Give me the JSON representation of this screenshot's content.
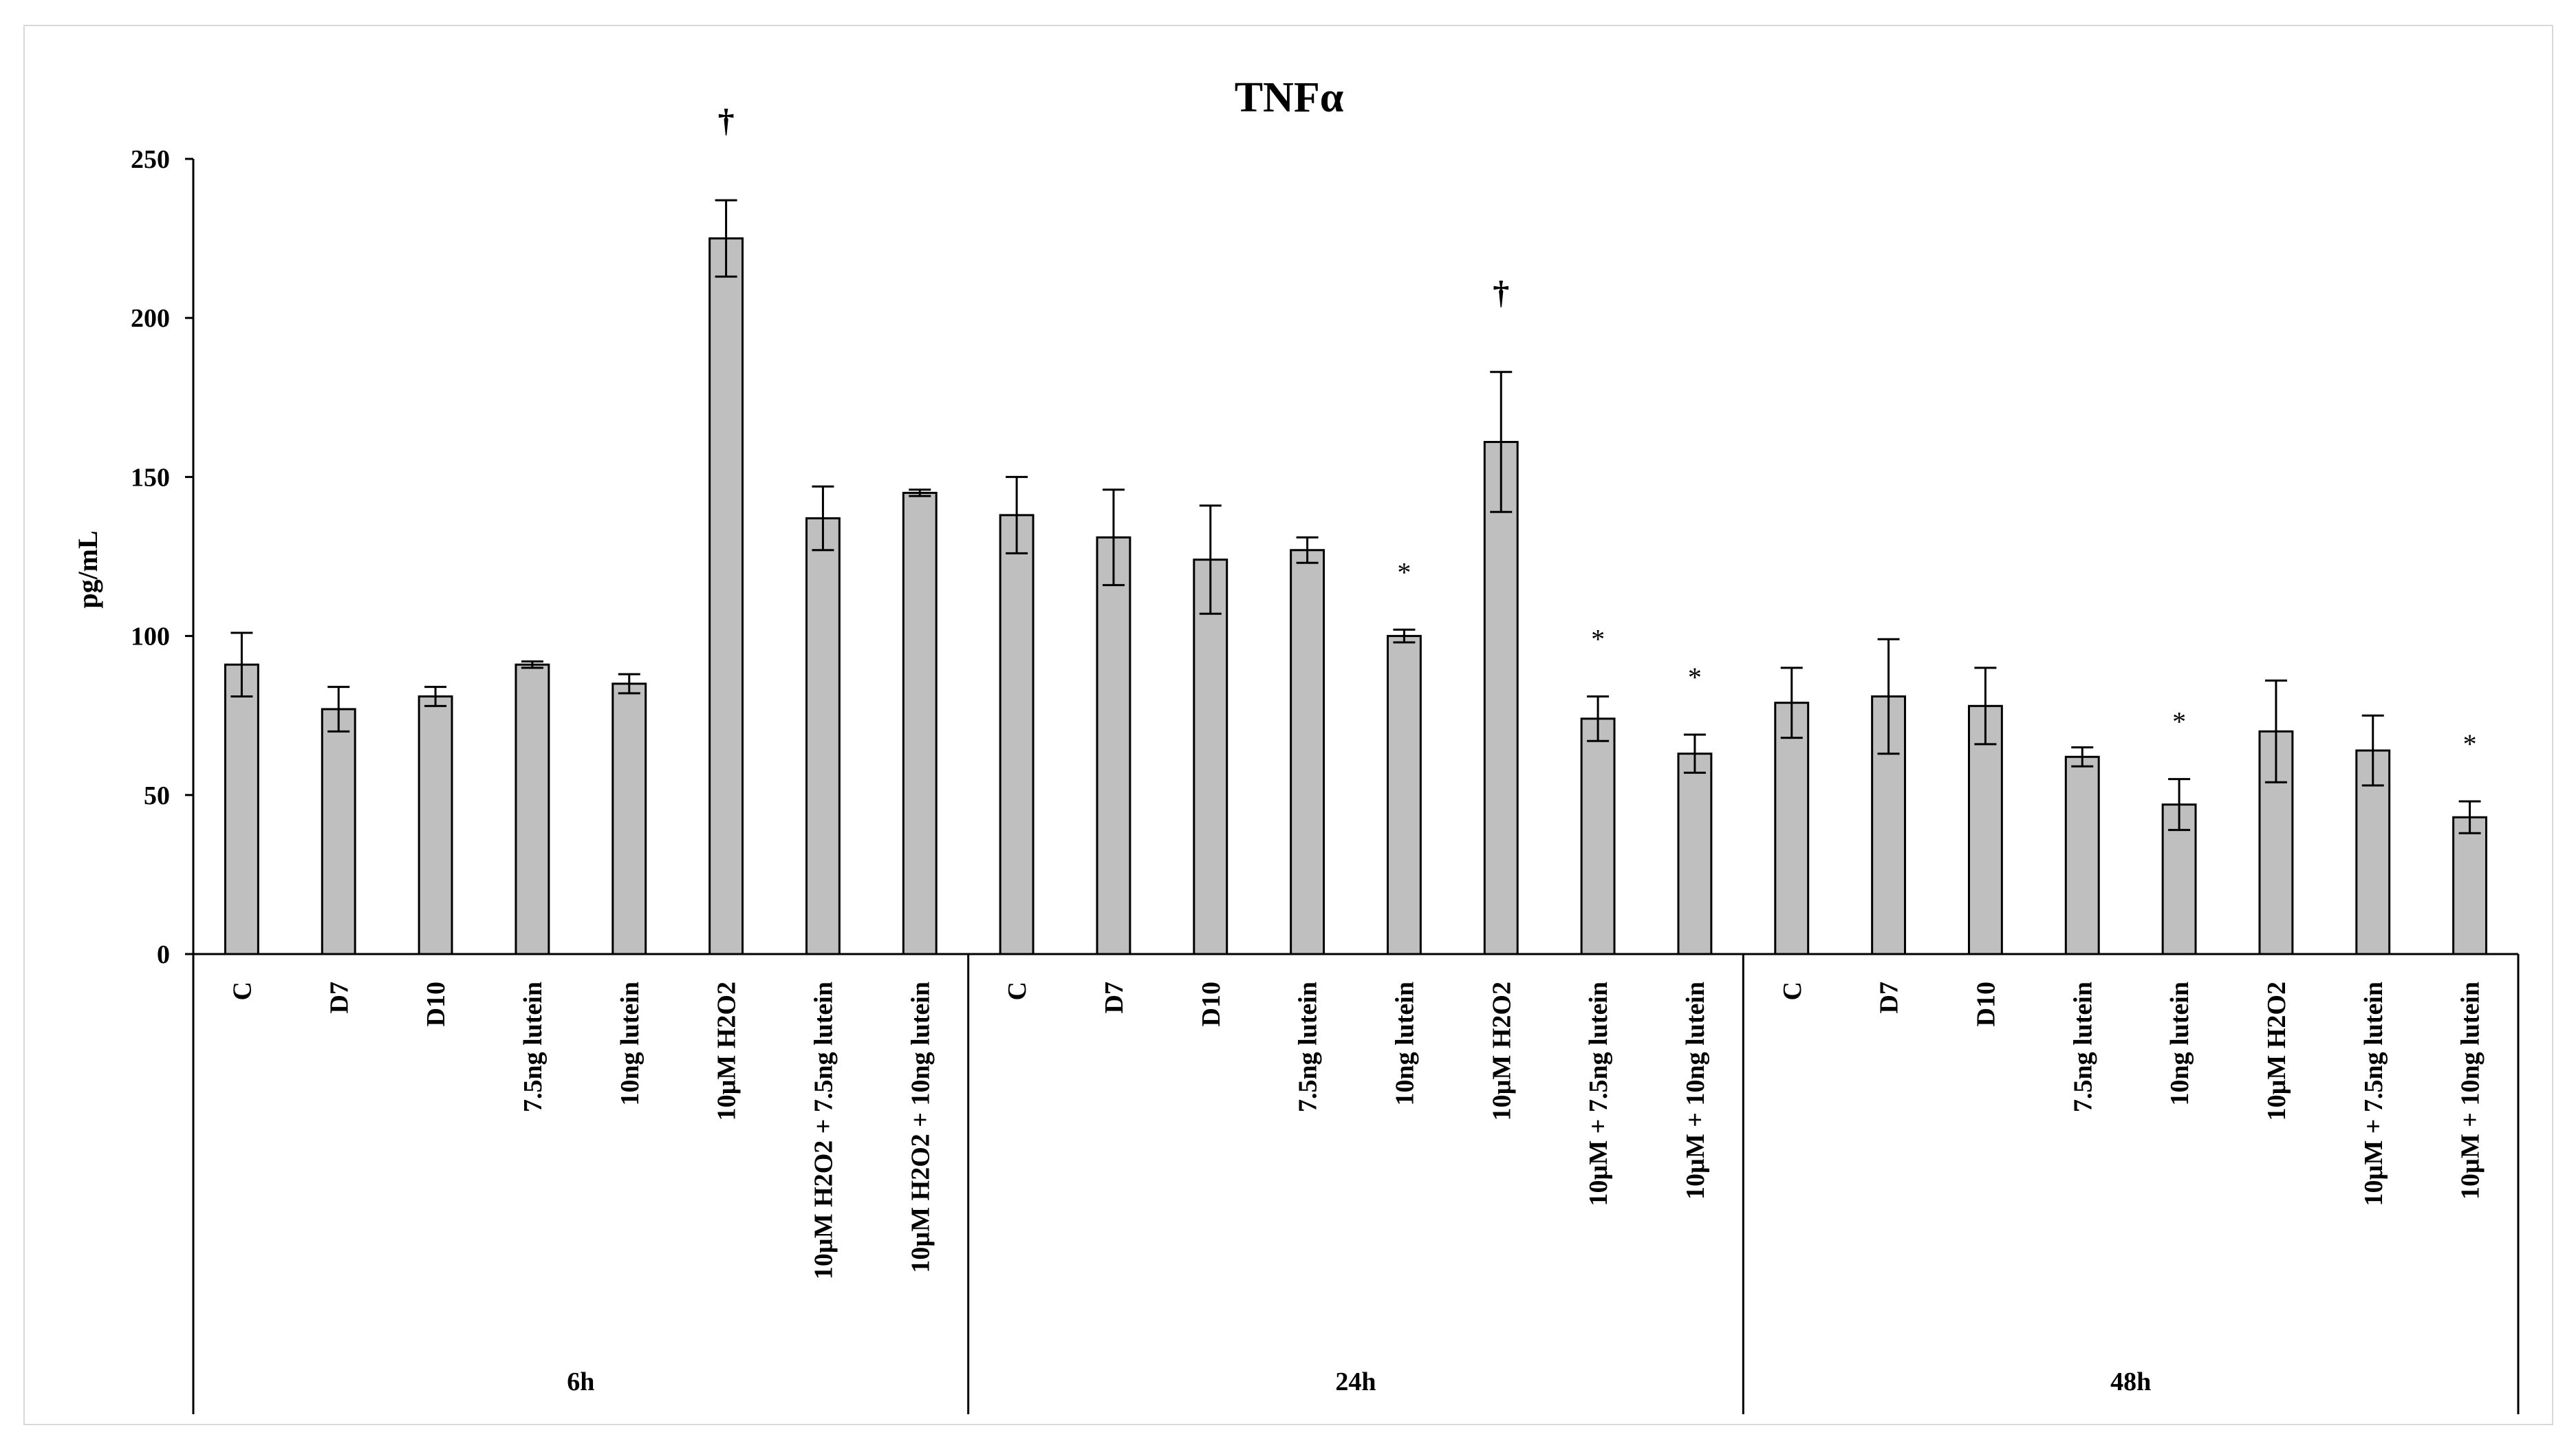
{
  "chart_data": {
    "type": "bar",
    "title": "TNFα",
    "ylabel": "pg/mL",
    "xlabel": "",
    "ylim": [
      0,
      250
    ],
    "yticks": [
      0,
      50,
      100,
      150,
      200,
      250
    ],
    "grid": false,
    "legend": "none",
    "colors": {
      "bar_fill": "#bfbfbf",
      "bar_stroke": "#000000",
      "axis": "#000000",
      "annotation": "#000000"
    },
    "groups": [
      {
        "label": "6h",
        "categories": [
          "C",
          "D7",
          "D10",
          "7.5ng lutein",
          "10ng lutein",
          "10µM H2O2",
          "10µM H2O2 + 7.5ng lutein",
          "10µM H2O2 + 10ng lutein"
        ],
        "values": [
          91,
          77,
          81,
          91,
          85,
          225,
          137,
          145
        ],
        "errors": [
          10,
          7,
          3,
          1,
          3,
          12,
          10,
          1
        ],
        "annotations": [
          "",
          "",
          "",
          "",
          "",
          "†",
          "",
          ""
        ]
      },
      {
        "label": "24h",
        "categories": [
          "C",
          "D7",
          "D10",
          "7.5ng lutein",
          "10ng lutein",
          "10µM H2O2",
          "10µM + 7.5ng lutein",
          "10µM + 10ng lutein"
        ],
        "values": [
          138,
          131,
          124,
          127,
          100,
          161,
          74,
          63
        ],
        "errors": [
          12,
          15,
          17,
          4,
          2,
          22,
          7,
          6
        ],
        "annotations": [
          "",
          "",
          "",
          "",
          "*",
          "†",
          "*",
          "*"
        ]
      },
      {
        "label": "48h",
        "categories": [
          "C",
          "D7",
          "D10",
          "7.5ng lutein",
          "10ng lutein",
          "10µM H2O2",
          "10µM + 7.5ng lutein",
          "10µM + 10ng lutein"
        ],
        "values": [
          79,
          81,
          78,
          62,
          47,
          70,
          64,
          43
        ],
        "errors": [
          11,
          18,
          12,
          3,
          8,
          16,
          11,
          5
        ],
        "annotations": [
          "",
          "",
          "",
          "",
          "*",
          "",
          "",
          "*"
        ]
      }
    ]
  }
}
